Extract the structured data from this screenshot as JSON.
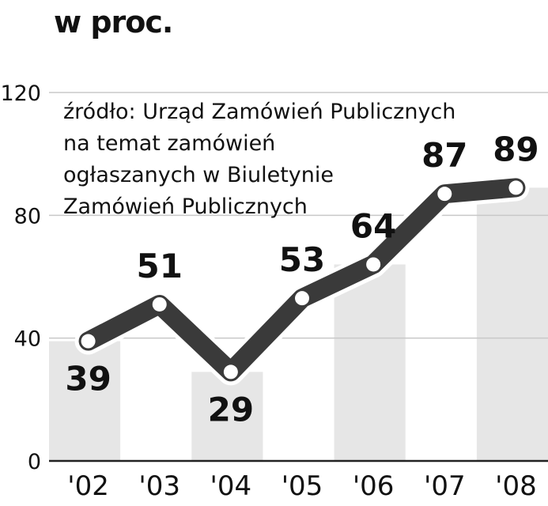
{
  "chart_data": {
    "type": "line",
    "unit_label": "w proc.",
    "categories": [
      "'02",
      "'03",
      "'04",
      "'05",
      "'06",
      "'07",
      "'08"
    ],
    "values": [
      39,
      51,
      29,
      53,
      64,
      87,
      89
    ],
    "ylim": [
      0,
      120
    ],
    "yticks": [
      "0",
      "40",
      "80",
      "120"
    ],
    "grid": true,
    "source_lines": [
      "źródło: Urząd Zamówień Publicznych",
      "na temat zamówień",
      "ogłaszanych w Biuletynie",
      "Zamówień Publicznych"
    ],
    "colors": {
      "line": "#3a3a3a",
      "halo": "#ffffff",
      "band": "#e6e6e6",
      "grid": "#c8c8c8",
      "text": "#111111"
    }
  }
}
